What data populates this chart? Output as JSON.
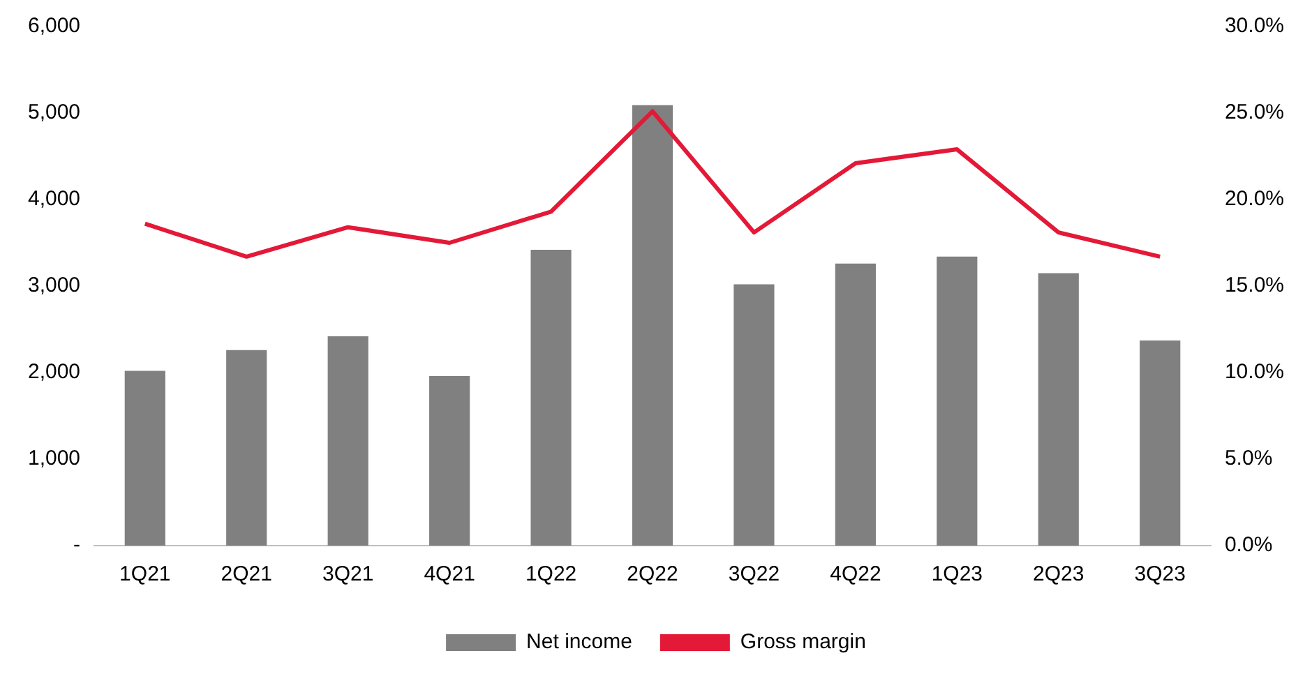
{
  "chart_data": {
    "type": "bar",
    "categories": [
      "1Q21",
      "2Q21",
      "3Q21",
      "4Q21",
      "1Q22",
      "2Q22",
      "3Q22",
      "4Q22",
      "1Q23",
      "2Q23",
      "3Q23"
    ],
    "series": [
      {
        "name": "Net income",
        "color": "#808080",
        "values": [
          2020,
          2260,
          2420,
          1960,
          3420,
          5090,
          3020,
          3260,
          3340,
          3150,
          2370
        ]
      },
      {
        "name": "Gross margin",
        "type": "line",
        "axis": "y2",
        "color": "#e31937",
        "values": [
          18.6,
          16.7,
          18.4,
          17.5,
          19.3,
          25.1,
          18.1,
          22.1,
          22.9,
          18.1,
          16.7
        ]
      }
    ],
    "ylim": [
      0,
      6000
    ],
    "yticks": [
      {
        "value": 0,
        "label": "-"
      },
      {
        "value": 1000,
        "label": "1,000"
      },
      {
        "value": 2000,
        "label": "2,000"
      },
      {
        "value": 3000,
        "label": "3,000"
      },
      {
        "value": 4000,
        "label": "4,000"
      },
      {
        "value": 5000,
        "label": "5,000"
      },
      {
        "value": 6000,
        "label": "6,000"
      }
    ],
    "y2lim": [
      0,
      30
    ],
    "y2ticks": [
      {
        "value": 0,
        "label": "0.0%"
      },
      {
        "value": 5,
        "label": "5.0%"
      },
      {
        "value": 10,
        "label": "10.0%"
      },
      {
        "value": 15,
        "label": "15.0%"
      },
      {
        "value": 20,
        "label": "20.0%"
      },
      {
        "value": 25,
        "label": "25.0%"
      },
      {
        "value": 30,
        "label": "30.0%"
      }
    ],
    "grid": false,
    "legend": "bottom",
    "marker": "none"
  }
}
